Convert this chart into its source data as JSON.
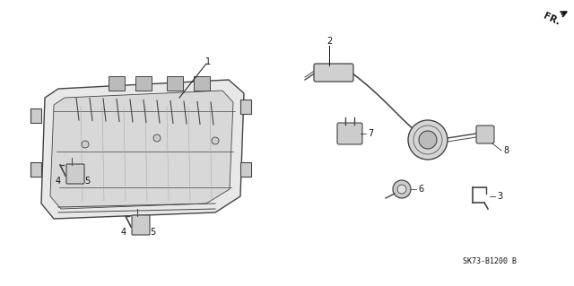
{
  "background_color": "#ffffff",
  "line_color": "#444444",
  "text_color": "#111111",
  "part_number_text": "SK73-B1200 B",
  "fr_label": "FR.",
  "fig_width": 6.4,
  "fig_height": 3.19,
  "dpi": 100
}
